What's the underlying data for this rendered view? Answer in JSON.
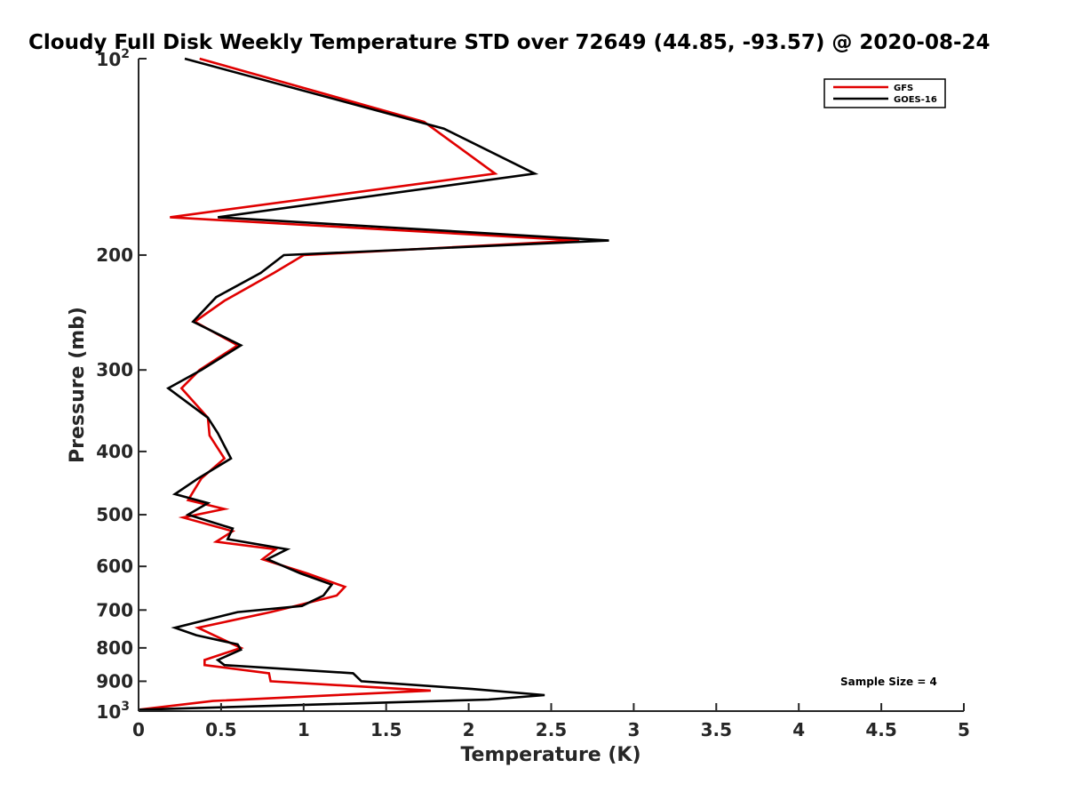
{
  "chart_data": {
    "type": "line",
    "title": "Cloudy Full Disk Weekly Temperature STD over 72649 (44.85, -93.57) @ 2020-08-24",
    "xlabel": "Temperature (K)",
    "ylabel": "Pressure (mb)",
    "xlim": [
      0,
      5
    ],
    "ylim": [
      100,
      1000
    ],
    "y_scale": "log",
    "y_reversed": true,
    "x_ticks": [
      "0",
      "0.5",
      "1",
      "1.5",
      "2",
      "2.5",
      "3",
      "3.5",
      "4",
      "4.5",
      "5"
    ],
    "y_ticks": [
      {
        "value": 200,
        "label": "200"
      },
      {
        "value": 300,
        "label": "300"
      },
      {
        "value": 400,
        "label": "400"
      },
      {
        "value": 500,
        "label": "500"
      },
      {
        "value": 600,
        "label": "600"
      },
      {
        "value": 700,
        "label": "700"
      },
      {
        "value": 800,
        "label": "800"
      },
      {
        "value": 900,
        "label": "900"
      }
    ],
    "y_tick_top": {
      "value": 100,
      "base": "10",
      "exp": "2"
    },
    "y_tick_bottom": {
      "value": 1000,
      "base": "10",
      "exp": "3"
    },
    "grid": false,
    "legend_position": "top-right",
    "annotation": "Sample Size = 4",
    "series": [
      {
        "name": "GFS",
        "color": "#e00000",
        "points": [
          [
            0.37,
            100
          ],
          [
            1.73,
            125
          ],
          [
            2.16,
            150
          ],
          [
            0.19,
            175
          ],
          [
            2.67,
            190
          ],
          [
            1.0,
            200
          ],
          [
            0.82,
            213
          ],
          [
            0.52,
            235
          ],
          [
            0.34,
            253
          ],
          [
            0.6,
            275
          ],
          [
            0.37,
            300
          ],
          [
            0.26,
            320
          ],
          [
            0.42,
            355
          ],
          [
            0.43,
            378
          ],
          [
            0.52,
            410
          ],
          [
            0.38,
            440
          ],
          [
            0.3,
            475
          ],
          [
            0.52,
            490
          ],
          [
            0.27,
            505
          ],
          [
            0.57,
            530
          ],
          [
            0.47,
            550
          ],
          [
            0.83,
            565
          ],
          [
            0.75,
            585
          ],
          [
            1.02,
            615
          ],
          [
            1.25,
            645
          ],
          [
            1.2,
            665
          ],
          [
            0.95,
            690
          ],
          [
            0.8,
            705
          ],
          [
            0.36,
            745
          ],
          [
            0.55,
            785
          ],
          [
            0.62,
            800
          ],
          [
            0.4,
            835
          ],
          [
            0.4,
            850
          ],
          [
            0.79,
            875
          ],
          [
            0.8,
            900
          ],
          [
            1.77,
            930
          ],
          [
            0.45,
            965
          ],
          [
            0.0,
            995
          ]
        ]
      },
      {
        "name": "GOES-16",
        "color": "#000000",
        "points": [
          [
            0.28,
            100
          ],
          [
            1.85,
            128
          ],
          [
            2.4,
            150
          ],
          [
            0.48,
            175
          ],
          [
            2.85,
            190
          ],
          [
            0.88,
            200
          ],
          [
            0.74,
            213
          ],
          [
            0.47,
            232
          ],
          [
            0.33,
            253
          ],
          [
            0.62,
            275
          ],
          [
            0.38,
            300
          ],
          [
            0.18,
            320
          ],
          [
            0.42,
            355
          ],
          [
            0.48,
            375
          ],
          [
            0.56,
            410
          ],
          [
            0.36,
            440
          ],
          [
            0.22,
            465
          ],
          [
            0.42,
            480
          ],
          [
            0.3,
            500
          ],
          [
            0.57,
            525
          ],
          [
            0.54,
            545
          ],
          [
            0.9,
            565
          ],
          [
            0.78,
            585
          ],
          [
            0.98,
            615
          ],
          [
            1.17,
            640
          ],
          [
            1.12,
            665
          ],
          [
            0.99,
            690
          ],
          [
            0.6,
            705
          ],
          [
            0.22,
            745
          ],
          [
            0.35,
            765
          ],
          [
            0.6,
            790
          ],
          [
            0.62,
            805
          ],
          [
            0.48,
            835
          ],
          [
            0.52,
            850
          ],
          [
            1.3,
            875
          ],
          [
            1.35,
            900
          ],
          [
            2.02,
            925
          ],
          [
            2.46,
            945
          ],
          [
            2.12,
            960
          ],
          [
            0.0,
            995
          ]
        ]
      }
    ]
  }
}
